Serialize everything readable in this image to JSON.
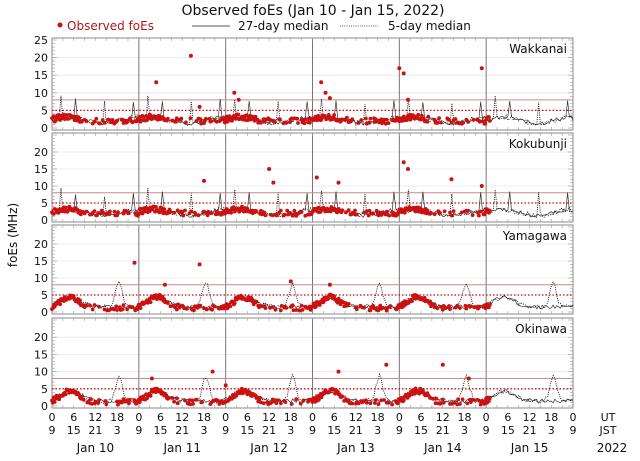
{
  "chart_data": {
    "type": "scatter",
    "title": "Observed foEs (Jan 10 - Jan 15, 2022)",
    "ylabel": "foEs (MHz)",
    "legend": {
      "placement": "top",
      "entries": [
        {
          "label": "Observed foEs",
          "style": "red dots",
          "color": "#cc1111"
        },
        {
          "label": "27-day median",
          "style": "solid black line"
        },
        {
          "label": "5-day median",
          "style": "dotted black line"
        }
      ]
    },
    "ylim": [
      0,
      25
    ],
    "yticks": [
      "0",
      "5",
      "10",
      "15",
      "20",
      "25"
    ],
    "yticks_lower_panels": [
      "0",
      "5",
      "10",
      "15",
      "20"
    ],
    "reference_lines": [
      {
        "value": 8,
        "style": "solid",
        "color": "#c98a8a"
      },
      {
        "value": 5,
        "style": "dotted",
        "color": "#cc1111"
      }
    ],
    "x_ut_ticks": [
      "0",
      "6",
      "12",
      "18",
      "0",
      "6",
      "12",
      "18",
      "0",
      "6",
      "12",
      "18",
      "0",
      "6",
      "12",
      "18",
      "0",
      "6",
      "12",
      "18",
      "0",
      "6",
      "12",
      "18",
      "0"
    ],
    "x_jst_ticks": [
      "9",
      "15",
      "21",
      "3",
      "9",
      "15",
      "21",
      "3",
      "9",
      "15",
      "21",
      "3",
      "9",
      "15",
      "21",
      "3",
      "9",
      "15",
      "21",
      "3",
      "9",
      "15",
      "21",
      "3",
      "9"
    ],
    "x_row_labels": [
      "UT",
      "JST"
    ],
    "days": [
      "Jan 10",
      "Jan 11",
      "Jan 12",
      "Jan 13",
      "Jan 14",
      "Jan 15"
    ],
    "year": "2022",
    "panels": [
      {
        "station": "Wakkanai",
        "outliers_mhz": [
          [
            1.2,
            13
          ],
          [
            1.6,
            20.5
          ],
          [
            1.7,
            6
          ],
          [
            2.1,
            10
          ],
          [
            2.15,
            8
          ],
          [
            3.1,
            13
          ],
          [
            3.15,
            10
          ],
          [
            3.2,
            8.5
          ],
          [
            4.0,
            17
          ],
          [
            4.05,
            15.5
          ],
          [
            4.1,
            8
          ],
          [
            4.95,
            17
          ]
        ]
      },
      {
        "station": "Kokubunji",
        "outliers_mhz": [
          [
            1.75,
            11.5
          ],
          [
            2.5,
            15
          ],
          [
            2.55,
            11
          ],
          [
            3.05,
            12.5
          ],
          [
            3.3,
            11
          ],
          [
            4.05,
            17
          ],
          [
            4.1,
            15
          ],
          [
            4.6,
            12
          ],
          [
            4.95,
            10
          ]
        ]
      },
      {
        "station": "Yamagawa",
        "outliers_mhz": [
          [
            0.95,
            14.5
          ],
          [
            1.7,
            14
          ],
          [
            1.3,
            8
          ],
          [
            2.75,
            9
          ],
          [
            3.2,
            8
          ]
        ]
      },
      {
        "station": "Okinawa",
        "outliers_mhz": [
          [
            1.15,
            8
          ],
          [
            1.85,
            10
          ],
          [
            2.0,
            6
          ],
          [
            3.85,
            12
          ],
          [
            3.3,
            10
          ],
          [
            4.5,
            12
          ],
          [
            4.8,
            8
          ]
        ]
      }
    ]
  }
}
